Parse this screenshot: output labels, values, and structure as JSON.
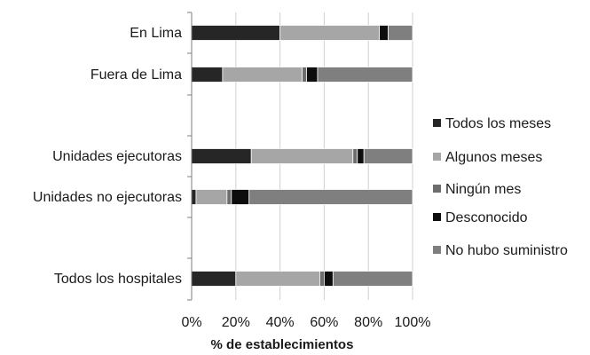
{
  "chart_data": {
    "type": "bar",
    "orientation": "horizontal",
    "stacked": true,
    "title": "",
    "xlabel": "% de establecimientos",
    "ylabel": "",
    "xlim": [
      0,
      100
    ],
    "x_ticks": [
      "0%",
      "20%",
      "40%",
      "60%",
      "80%",
      "100%"
    ],
    "grid": true,
    "legend_position": "right",
    "categories": [
      "En Lima",
      "Fuera de Lima",
      "Unidades ejecutoras",
      "Unidades no ejecutoras",
      "Todos los hospitales"
    ],
    "series": [
      {
        "name": "Todos los meses",
        "color": "#262626",
        "values": [
          40,
          14,
          27,
          2,
          20
        ]
      },
      {
        "name": "Algunos meses",
        "color": "#a6a6a6",
        "values": [
          45,
          36,
          46,
          14,
          38
        ]
      },
      {
        "name": "Ningún mes",
        "color": "#6d6d6d",
        "values": [
          0,
          2,
          2,
          2,
          2
        ]
      },
      {
        "name": "Desconocido",
        "color": "#0d0d0d",
        "values": [
          4,
          5,
          3,
          8,
          4
        ]
      },
      {
        "name": "No hubo suministro",
        "color": "#7f7f7f",
        "values": [
          11,
          43,
          22,
          74,
          36
        ]
      }
    ]
  }
}
